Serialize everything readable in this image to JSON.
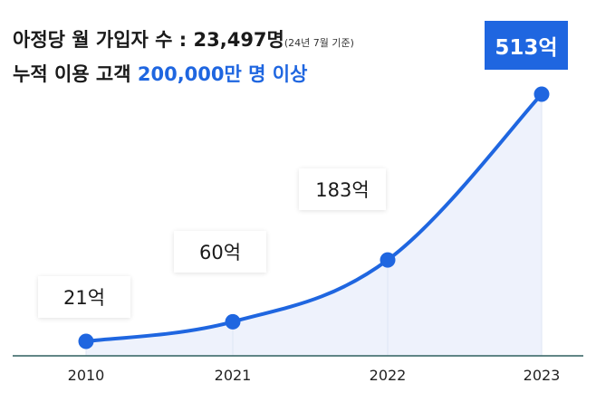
{
  "header": {
    "line1_text": "아정당 월 가입자 수 : 23,497명",
    "line1_note": "(24년 7월 기준)",
    "line2_text": "누적 이용 고객 ",
    "line2_highlight": "200,000만 명 이상"
  },
  "colors": {
    "line": "#1f66e0",
    "area": "#eef2fc",
    "axis": "#2e5f5f",
    "accent_box": "#1f66e0"
  },
  "chart_data": {
    "type": "line",
    "categories": [
      "2010",
      "2021",
      "2022",
      "2023"
    ],
    "values": [
      21,
      60,
      183,
      513
    ],
    "labels": [
      "21억",
      "60억",
      "183억",
      "513억"
    ],
    "title": "",
    "xlabel": "",
    "ylabel": "",
    "highlight_last": true,
    "grid": false
  }
}
